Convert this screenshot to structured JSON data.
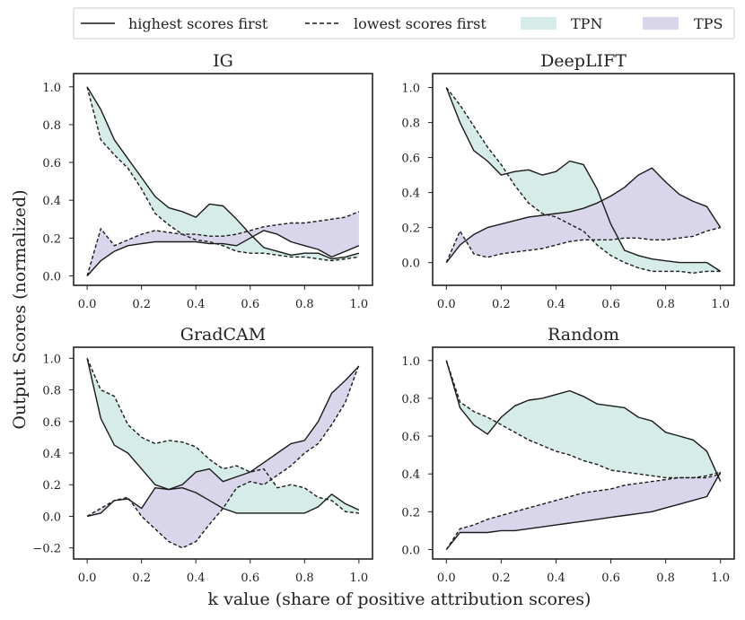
{
  "colors": {
    "tpn": "#d5ece9",
    "tps": "#d9d6ec",
    "line": "#1a1a1a",
    "axis": "#222222"
  },
  "legend": {
    "highest": "highest scores first",
    "lowest": "lowest scores first",
    "tpn": "TPN",
    "tps": "TPS"
  },
  "xlabel": "k value (share of positive attribution scores)",
  "ylabel": "Output Scores (normalized)",
  "chart_data": [
    {
      "type": "line",
      "title": "IG",
      "xlim": [
        -0.05,
        1.05
      ],
      "ylim": [
        -0.05,
        1.07
      ],
      "xticks": [
        "0.0",
        "0.2",
        "0.4",
        "0.6",
        "0.8",
        "1.0"
      ],
      "yticks": [
        "0.0",
        "0.2",
        "0.4",
        "0.6",
        "0.8",
        "1.0"
      ],
      "series": [
        {
          "name": "TPN highest scores first",
          "style": "solid",
          "x": [
            0.0,
            0.05,
            0.1,
            0.15,
            0.2,
            0.25,
            0.3,
            0.35,
            0.4,
            0.45,
            0.5,
            0.55,
            0.6,
            0.65,
            0.7,
            0.75,
            0.8,
            0.85,
            0.9,
            0.95,
            1.0
          ],
          "y": [
            1.0,
            0.88,
            0.72,
            0.62,
            0.52,
            0.42,
            0.36,
            0.34,
            0.31,
            0.38,
            0.37,
            0.3,
            0.22,
            0.15,
            0.13,
            0.11,
            0.12,
            0.12,
            0.09,
            0.1,
            0.12
          ]
        },
        {
          "name": "TPN lowest scores first",
          "style": "dashed",
          "x": [
            0.0,
            0.05,
            0.1,
            0.15,
            0.2,
            0.25,
            0.3,
            0.35,
            0.4,
            0.45,
            0.5,
            0.55,
            0.6,
            0.65,
            0.7,
            0.75,
            0.8,
            0.85,
            0.9,
            0.95,
            1.0
          ],
          "y": [
            1.0,
            0.72,
            0.64,
            0.57,
            0.46,
            0.33,
            0.27,
            0.22,
            0.19,
            0.18,
            0.16,
            0.13,
            0.12,
            0.12,
            0.11,
            0.1,
            0.1,
            0.09,
            0.08,
            0.09,
            0.1
          ]
        },
        {
          "name": "TPS highest scores first",
          "style": "solid",
          "x": [
            0.0,
            0.05,
            0.1,
            0.15,
            0.2,
            0.25,
            0.3,
            0.35,
            0.4,
            0.45,
            0.5,
            0.55,
            0.6,
            0.65,
            0.7,
            0.75,
            0.8,
            0.85,
            0.9,
            0.95,
            1.0
          ],
          "y": [
            0.0,
            0.08,
            0.13,
            0.16,
            0.17,
            0.18,
            0.18,
            0.18,
            0.18,
            0.17,
            0.17,
            0.16,
            0.2,
            0.24,
            0.22,
            0.18,
            0.16,
            0.14,
            0.1,
            0.13,
            0.16
          ]
        },
        {
          "name": "TPS lowest scores first",
          "style": "dashed",
          "x": [
            0.0,
            0.05,
            0.1,
            0.15,
            0.2,
            0.25,
            0.3,
            0.35,
            0.4,
            0.45,
            0.5,
            0.55,
            0.6,
            0.65,
            0.7,
            0.75,
            0.8,
            0.85,
            0.9,
            0.95,
            1.0
          ],
          "y": [
            0.0,
            0.25,
            0.16,
            0.19,
            0.22,
            0.24,
            0.23,
            0.22,
            0.22,
            0.21,
            0.21,
            0.22,
            0.24,
            0.26,
            0.27,
            0.28,
            0.28,
            0.29,
            0.3,
            0.31,
            0.34
          ]
        }
      ]
    },
    {
      "type": "line",
      "title": "DeepLIFT",
      "xlim": [
        -0.05,
        1.05
      ],
      "ylim": [
        -0.13,
        1.08
      ],
      "xticks": [
        "0.0",
        "0.2",
        "0.4",
        "0.6",
        "0.8",
        "1.0"
      ],
      "yticks": [
        "0.0",
        "0.2",
        "0.4",
        "0.6",
        "0.8",
        "1.0"
      ],
      "series": [
        {
          "name": "TPN highest scores first",
          "style": "solid",
          "x": [
            0.0,
            0.05,
            0.1,
            0.15,
            0.2,
            0.25,
            0.3,
            0.35,
            0.4,
            0.45,
            0.5,
            0.55,
            0.6,
            0.65,
            0.7,
            0.75,
            0.8,
            0.85,
            0.9,
            0.95,
            1.0
          ],
          "y": [
            1.0,
            0.8,
            0.64,
            0.58,
            0.5,
            0.52,
            0.53,
            0.5,
            0.52,
            0.58,
            0.56,
            0.42,
            0.22,
            0.07,
            0.04,
            0.02,
            0.01,
            0.0,
            0.0,
            0.0,
            -0.05
          ]
        },
        {
          "name": "TPN lowest scores first",
          "style": "dashed",
          "x": [
            0.0,
            0.05,
            0.1,
            0.15,
            0.2,
            0.25,
            0.3,
            0.35,
            0.4,
            0.45,
            0.5,
            0.55,
            0.6,
            0.65,
            0.7,
            0.75,
            0.8,
            0.85,
            0.9,
            0.95,
            1.0
          ],
          "y": [
            1.0,
            0.9,
            0.78,
            0.66,
            0.56,
            0.44,
            0.34,
            0.28,
            0.26,
            0.22,
            0.18,
            0.1,
            0.04,
            0.0,
            -0.03,
            -0.05,
            -0.05,
            -0.05,
            -0.06,
            -0.05,
            -0.05
          ]
        },
        {
          "name": "TPS highest scores first",
          "style": "solid",
          "x": [
            0.0,
            0.05,
            0.1,
            0.15,
            0.2,
            0.25,
            0.3,
            0.35,
            0.4,
            0.45,
            0.5,
            0.55,
            0.6,
            0.65,
            0.7,
            0.75,
            0.8,
            0.85,
            0.9,
            0.95,
            1.0
          ],
          "y": [
            0.0,
            0.1,
            0.16,
            0.2,
            0.22,
            0.24,
            0.26,
            0.27,
            0.28,
            0.29,
            0.31,
            0.34,
            0.38,
            0.43,
            0.5,
            0.54,
            0.46,
            0.39,
            0.35,
            0.32,
            0.2
          ]
        },
        {
          "name": "TPS lowest scores first",
          "style": "dashed",
          "x": [
            0.0,
            0.05,
            0.1,
            0.15,
            0.2,
            0.25,
            0.3,
            0.35,
            0.4,
            0.45,
            0.5,
            0.55,
            0.6,
            0.65,
            0.7,
            0.75,
            0.8,
            0.85,
            0.9,
            0.95,
            1.0
          ],
          "y": [
            0.0,
            0.18,
            0.05,
            0.03,
            0.05,
            0.06,
            0.07,
            0.08,
            0.1,
            0.12,
            0.13,
            0.13,
            0.13,
            0.14,
            0.14,
            0.13,
            0.13,
            0.14,
            0.15,
            0.18,
            0.2
          ]
        }
      ]
    },
    {
      "type": "line",
      "title": "GradCAM",
      "xlim": [
        -0.05,
        1.05
      ],
      "ylim": [
        -0.27,
        1.07
      ],
      "xticks": [
        "0.0",
        "0.2",
        "0.4",
        "0.6",
        "0.8",
        "1.0"
      ],
      "yticks": [
        "−0.2",
        "0.0",
        "0.2",
        "0.4",
        "0.6",
        "0.8",
        "1.0"
      ],
      "series": [
        {
          "name": "TPN highest scores first",
          "style": "solid",
          "x": [
            0.0,
            0.05,
            0.1,
            0.15,
            0.2,
            0.25,
            0.3,
            0.35,
            0.4,
            0.45,
            0.5,
            0.55,
            0.6,
            0.65,
            0.7,
            0.75,
            0.8,
            0.85,
            0.9,
            0.95,
            1.0
          ],
          "y": [
            1.0,
            0.62,
            0.45,
            0.4,
            0.3,
            0.2,
            0.17,
            0.18,
            0.15,
            0.1,
            0.05,
            0.02,
            0.02,
            0.02,
            0.02,
            0.02,
            0.02,
            0.06,
            0.14,
            0.08,
            0.04
          ]
        },
        {
          "name": "TPN lowest scores first",
          "style": "dashed",
          "x": [
            0.0,
            0.05,
            0.1,
            0.15,
            0.2,
            0.25,
            0.3,
            0.35,
            0.4,
            0.45,
            0.5,
            0.55,
            0.6,
            0.65,
            0.7,
            0.75,
            0.8,
            0.85,
            0.9,
            0.95,
            1.0
          ],
          "y": [
            1.0,
            0.8,
            0.76,
            0.58,
            0.5,
            0.46,
            0.48,
            0.47,
            0.44,
            0.36,
            0.3,
            0.32,
            0.28,
            0.3,
            0.18,
            0.2,
            0.18,
            0.12,
            0.1,
            0.03,
            0.02
          ]
        },
        {
          "name": "TPS highest scores first",
          "style": "solid",
          "x": [
            0.0,
            0.05,
            0.1,
            0.15,
            0.2,
            0.25,
            0.3,
            0.35,
            0.4,
            0.45,
            0.5,
            0.55,
            0.6,
            0.65,
            0.7,
            0.75,
            0.8,
            0.85,
            0.9,
            0.95,
            1.0
          ],
          "y": [
            0.0,
            0.02,
            0.1,
            0.11,
            0.05,
            0.18,
            0.17,
            0.2,
            0.28,
            0.3,
            0.22,
            0.25,
            0.28,
            0.34,
            0.4,
            0.46,
            0.48,
            0.6,
            0.78,
            0.86,
            0.95
          ]
        },
        {
          "name": "TPS lowest scores first",
          "style": "dashed",
          "x": [
            0.0,
            0.05,
            0.1,
            0.15,
            0.2,
            0.25,
            0.3,
            0.35,
            0.4,
            0.45,
            0.5,
            0.55,
            0.6,
            0.65,
            0.7,
            0.75,
            0.8,
            0.85,
            0.9,
            0.95,
            1.0
          ],
          "y": [
            0.0,
            0.05,
            0.1,
            0.12,
            0.0,
            -0.08,
            -0.16,
            -0.2,
            -0.16,
            -0.05,
            0.05,
            0.18,
            0.22,
            0.2,
            0.26,
            0.32,
            0.4,
            0.46,
            0.58,
            0.72,
            0.96
          ]
        }
      ]
    },
    {
      "type": "line",
      "title": "Random",
      "xlim": [
        -0.05,
        1.05
      ],
      "ylim": [
        -0.05,
        1.07
      ],
      "xticks": [
        "0.0",
        "0.2",
        "0.4",
        "0.6",
        "0.8",
        "1.0"
      ],
      "yticks": [
        "0.0",
        "0.2",
        "0.4",
        "0.6",
        "0.8",
        "1.0"
      ],
      "series": [
        {
          "name": "TPN highest scores first",
          "style": "solid",
          "x": [
            0.0,
            0.05,
            0.1,
            0.15,
            0.2,
            0.25,
            0.3,
            0.35,
            0.4,
            0.45,
            0.5,
            0.55,
            0.6,
            0.65,
            0.7,
            0.75,
            0.8,
            0.85,
            0.9,
            0.95,
            1.0
          ],
          "y": [
            1.0,
            0.75,
            0.66,
            0.61,
            0.7,
            0.76,
            0.79,
            0.8,
            0.82,
            0.84,
            0.81,
            0.77,
            0.76,
            0.75,
            0.7,
            0.68,
            0.62,
            0.6,
            0.58,
            0.52,
            0.36
          ]
        },
        {
          "name": "TPN lowest scores first",
          "style": "dashed",
          "x": [
            0.0,
            0.05,
            0.1,
            0.15,
            0.2,
            0.25,
            0.3,
            0.35,
            0.4,
            0.45,
            0.5,
            0.55,
            0.6,
            0.65,
            0.7,
            0.75,
            0.8,
            0.85,
            0.9,
            0.95,
            1.0
          ],
          "y": [
            1.0,
            0.78,
            0.73,
            0.7,
            0.66,
            0.62,
            0.58,
            0.55,
            0.52,
            0.5,
            0.47,
            0.45,
            0.42,
            0.41,
            0.4,
            0.39,
            0.38,
            0.38,
            0.38,
            0.39,
            0.41
          ]
        },
        {
          "name": "TPS highest scores first",
          "style": "solid",
          "x": [
            0.0,
            0.05,
            0.1,
            0.15,
            0.2,
            0.25,
            0.3,
            0.35,
            0.4,
            0.45,
            0.5,
            0.55,
            0.6,
            0.65,
            0.7,
            0.75,
            0.8,
            0.85,
            0.9,
            0.95,
            1.0
          ],
          "y": [
            0.0,
            0.09,
            0.09,
            0.09,
            0.1,
            0.1,
            0.11,
            0.12,
            0.13,
            0.14,
            0.15,
            0.16,
            0.17,
            0.18,
            0.19,
            0.2,
            0.22,
            0.24,
            0.26,
            0.28,
            0.41
          ]
        },
        {
          "name": "TPS lowest scores first",
          "style": "dashed",
          "x": [
            0.0,
            0.05,
            0.1,
            0.15,
            0.2,
            0.25,
            0.3,
            0.35,
            0.4,
            0.45,
            0.5,
            0.55,
            0.6,
            0.65,
            0.7,
            0.75,
            0.8,
            0.85,
            0.9,
            0.95,
            1.0
          ],
          "y": [
            0.0,
            0.11,
            0.13,
            0.16,
            0.18,
            0.2,
            0.22,
            0.24,
            0.26,
            0.28,
            0.3,
            0.31,
            0.32,
            0.34,
            0.35,
            0.36,
            0.37,
            0.38,
            0.38,
            0.38,
            0.4
          ]
        }
      ]
    }
  ]
}
